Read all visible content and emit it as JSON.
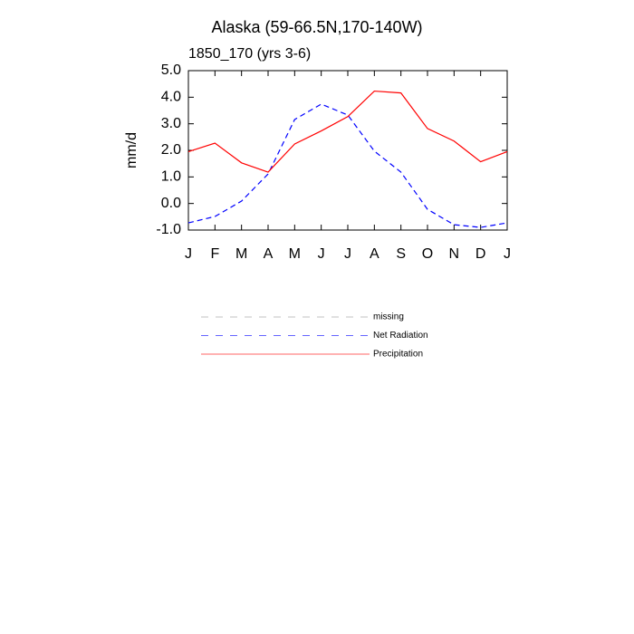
{
  "chart_data": {
    "type": "line",
    "title": "Alaska (59-66.5N,170-140W)",
    "subtitle": "1850_170 (yrs 3-6)",
    "y_label": "mm/d",
    "categories": [
      "J",
      "F",
      "M",
      "A",
      "M",
      "J",
      "J",
      "A",
      "S",
      "O",
      "N",
      "D",
      "J"
    ],
    "series": [
      {
        "name": "missing",
        "color": "#999999",
        "dash": true,
        "values": [
          null,
          null,
          null,
          null,
          null,
          null,
          null,
          null,
          null,
          null,
          null,
          null,
          null
        ]
      },
      {
        "name": "Net Radiation",
        "color": "#0000ff",
        "dash": true,
        "values": [
          -0.73,
          -0.49,
          0.09,
          1.11,
          3.16,
          3.74,
          3.33,
          1.97,
          1.18,
          -0.22,
          -0.8,
          -0.9,
          -0.73
        ]
      },
      {
        "name": "Precipitation",
        "color": "#ff0000",
        "dash": false,
        "values": [
          1.95,
          2.27,
          1.53,
          1.18,
          2.24,
          2.73,
          3.27,
          4.23,
          4.16,
          2.82,
          2.35,
          1.57,
          1.95
        ]
      }
    ],
    "ylim": [
      -1,
      5
    ],
    "yticks": [
      {
        "value": 5,
        "label": "5.0"
      },
      {
        "value": 4,
        "label": "4.0"
      },
      {
        "value": 3,
        "label": "3.0"
      },
      {
        "value": 2,
        "label": "2.0"
      },
      {
        "value": 1,
        "label": "1.0"
      },
      {
        "value": 0,
        "label": "0.0"
      },
      {
        "value": -1,
        "label": "-1.0"
      }
    ],
    "grid": false
  }
}
